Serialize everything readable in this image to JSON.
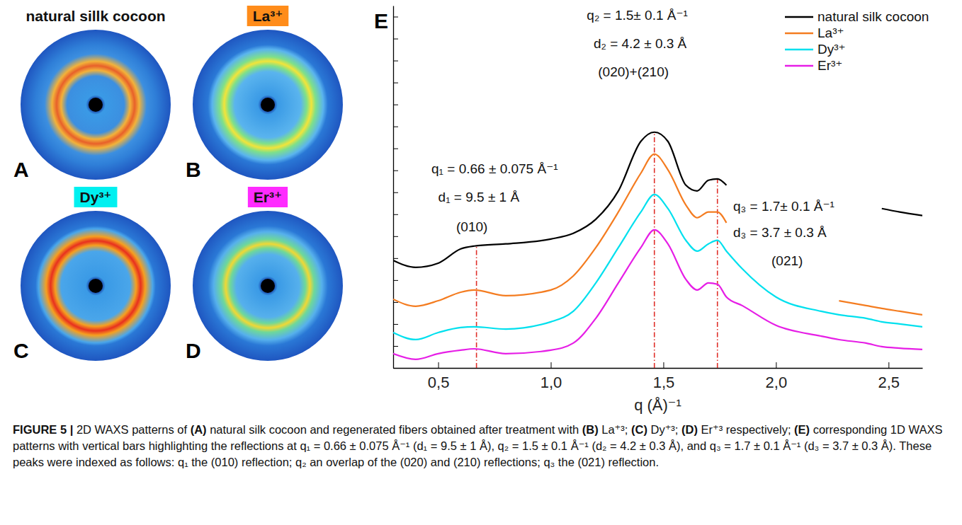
{
  "panels": [
    {
      "letter": "A",
      "title": "natural sillk cocoon",
      "color": "#ffffff"
    },
    {
      "letter": "B",
      "title": "La³⁺",
      "color": "#ff8c1a"
    },
    {
      "letter": "C",
      "title": "Dy³⁺",
      "color": "#00f0f0"
    },
    {
      "letter": "D",
      "title": "Er³⁺",
      "color": "#ff2bff"
    }
  ],
  "chart_data": {
    "type": "line",
    "panel_label": "E",
    "x_label": "q (Å)⁻¹",
    "x": [
      0.3,
      0.4,
      0.5,
      0.6,
      0.66,
      0.8,
      1.0,
      1.1,
      1.2,
      1.3,
      1.4,
      1.46,
      1.52,
      1.6,
      1.65,
      1.7,
      1.74,
      1.78,
      1.85,
      2.0,
      2.2,
      2.28,
      2.4,
      2.47,
      2.55,
      2.65
    ],
    "series": [
      {
        "name": "natural silk cocoon",
        "color": "#000000",
        "values": [
          4.9,
          4.58,
          4.77,
          5.42,
          5.55,
          5.65,
          5.87,
          6.13,
          6.77,
          8.06,
          10.32,
          10.74,
          10.32,
          8.32,
          8.06,
          8.55,
          8.61,
          8.32,
          null,
          null,
          null,
          null,
          null,
          7.26,
          7.1,
          6.94
        ]
      },
      {
        "name": "La³⁺",
        "color": "#f47c20",
        "values": [
          3.13,
          2.81,
          3.06,
          3.45,
          3.55,
          3.29,
          3.55,
          4.19,
          5.48,
          7.1,
          8.87,
          9.74,
          9.03,
          7.42,
          6.84,
          7.1,
          7.1,
          6.61,
          null,
          null,
          null,
          3.06,
          2.84,
          2.71,
          2.58,
          2.42
        ]
      },
      {
        "name": "Dy³⁺",
        "color": "#00e0ee",
        "values": [
          1.61,
          1.29,
          1.61,
          1.84,
          1.87,
          1.77,
          2.1,
          2.58,
          3.87,
          5.48,
          7.1,
          7.9,
          7.26,
          5.81,
          5.32,
          5.65,
          5.81,
          5.32,
          4.52,
          3.23,
          2.58,
          2.42,
          2.26,
          2.1,
          2.0,
          1.87
        ]
      },
      {
        "name": "Er³⁺",
        "color": "#e61ee6",
        "values": [
          0.65,
          0.39,
          0.65,
          0.81,
          0.87,
          0.65,
          0.81,
          1.13,
          2.26,
          3.87,
          5.48,
          6.29,
          5.65,
          4.03,
          3.55,
          3.87,
          3.81,
          3.23,
          2.84,
          1.94,
          1.45,
          1.29,
          1.13,
          0.97,
          0.9,
          0.84
        ]
      }
    ],
    "xlim": [
      0.3,
      2.65
    ],
    "xticks": [
      {
        "value": 0.5,
        "label": "0,5"
      },
      {
        "value": 1.0,
        "label": "1,0"
      },
      {
        "value": 1.5,
        "label": "1,5"
      },
      {
        "value": 2.0,
        "label": "2,0"
      },
      {
        "value": 2.5,
        "label": "2,5"
      }
    ],
    "ylim": [
      0,
      16.5
    ],
    "yticks": [
      0,
      1,
      2,
      3,
      4,
      5,
      6,
      7,
      8,
      9,
      10,
      11,
      12,
      13,
      14,
      15,
      16
    ],
    "tick_labels": "x",
    "legend": "top-right",
    "reference_lines": [
      0.67,
      1.46,
      1.74
    ],
    "annotations": [
      {
        "text": "q₁ = 0.66 ± 0.075 Å⁻¹",
        "x": 0.47,
        "y": 8.87
      },
      {
        "text": "d₁ = 9.5 ± 1 Å",
        "x": 0.5,
        "y": 7.58
      },
      {
        "text": "(010)",
        "x": 0.58,
        "y": 6.23
      },
      {
        "text": "q₂ = 1.5± 0.1 Å⁻¹",
        "x": 1.16,
        "y": 15.87
      },
      {
        "text": "d₂ = 4.2 ± 0.3 Å",
        "x": 1.19,
        "y": 14.58
      },
      {
        "text": "(020)+(210)",
        "x": 1.21,
        "y": 13.29
      },
      {
        "text": "q₃ = 1.7± 0.1 Å⁻¹",
        "x": 1.81,
        "y": 7.16
      },
      {
        "text": "d₃ = 3.7 ± 0.3 Å",
        "x": 1.81,
        "y": 5.97
      },
      {
        "text": "(021)",
        "x": 1.98,
        "y": 4.68
      }
    ]
  },
  "caption": {
    "runs": [
      {
        "text": "FIGURE 5 | ",
        "bold": true
      },
      {
        "text": "2D WAXS patterns of ",
        "bold": false
      },
      {
        "text": "(A)",
        "bold": true
      },
      {
        "text": " natural silk cocoon and regenerated fibers obtained after treatment with ",
        "bold": false
      },
      {
        "text": "(B)",
        "bold": true
      },
      {
        "text": " La⁺³; ",
        "bold": false
      },
      {
        "text": "(C)",
        "bold": true
      },
      {
        "text": " Dy⁺³; ",
        "bold": false
      },
      {
        "text": "(D)",
        "bold": true
      },
      {
        "text": " Er⁺³ respectively; ",
        "bold": false
      },
      {
        "text": "(E)",
        "bold": true
      },
      {
        "text": " corresponding 1D WAXS patterns with vertical bars highlighting the reflections at q₁ = 0.66 ± 0.075 Å⁻¹ (d₁ = 9.5 ± 1 Å), q₂ = 1.5 ± 0.1 Å⁻¹ (d₂ = 4.2 ± 0.3 Å), and q₃ = 1.7 ± 0.1 Å⁻¹ (d₃ = 3.7 ± 0.3 Å). These peaks were indexed as follows: q₁ the (010) reflection; q₂ an overlap of the (020) and (210) reflections; q₃ the (021) reflection.",
        "bold": false
      }
    ]
  }
}
